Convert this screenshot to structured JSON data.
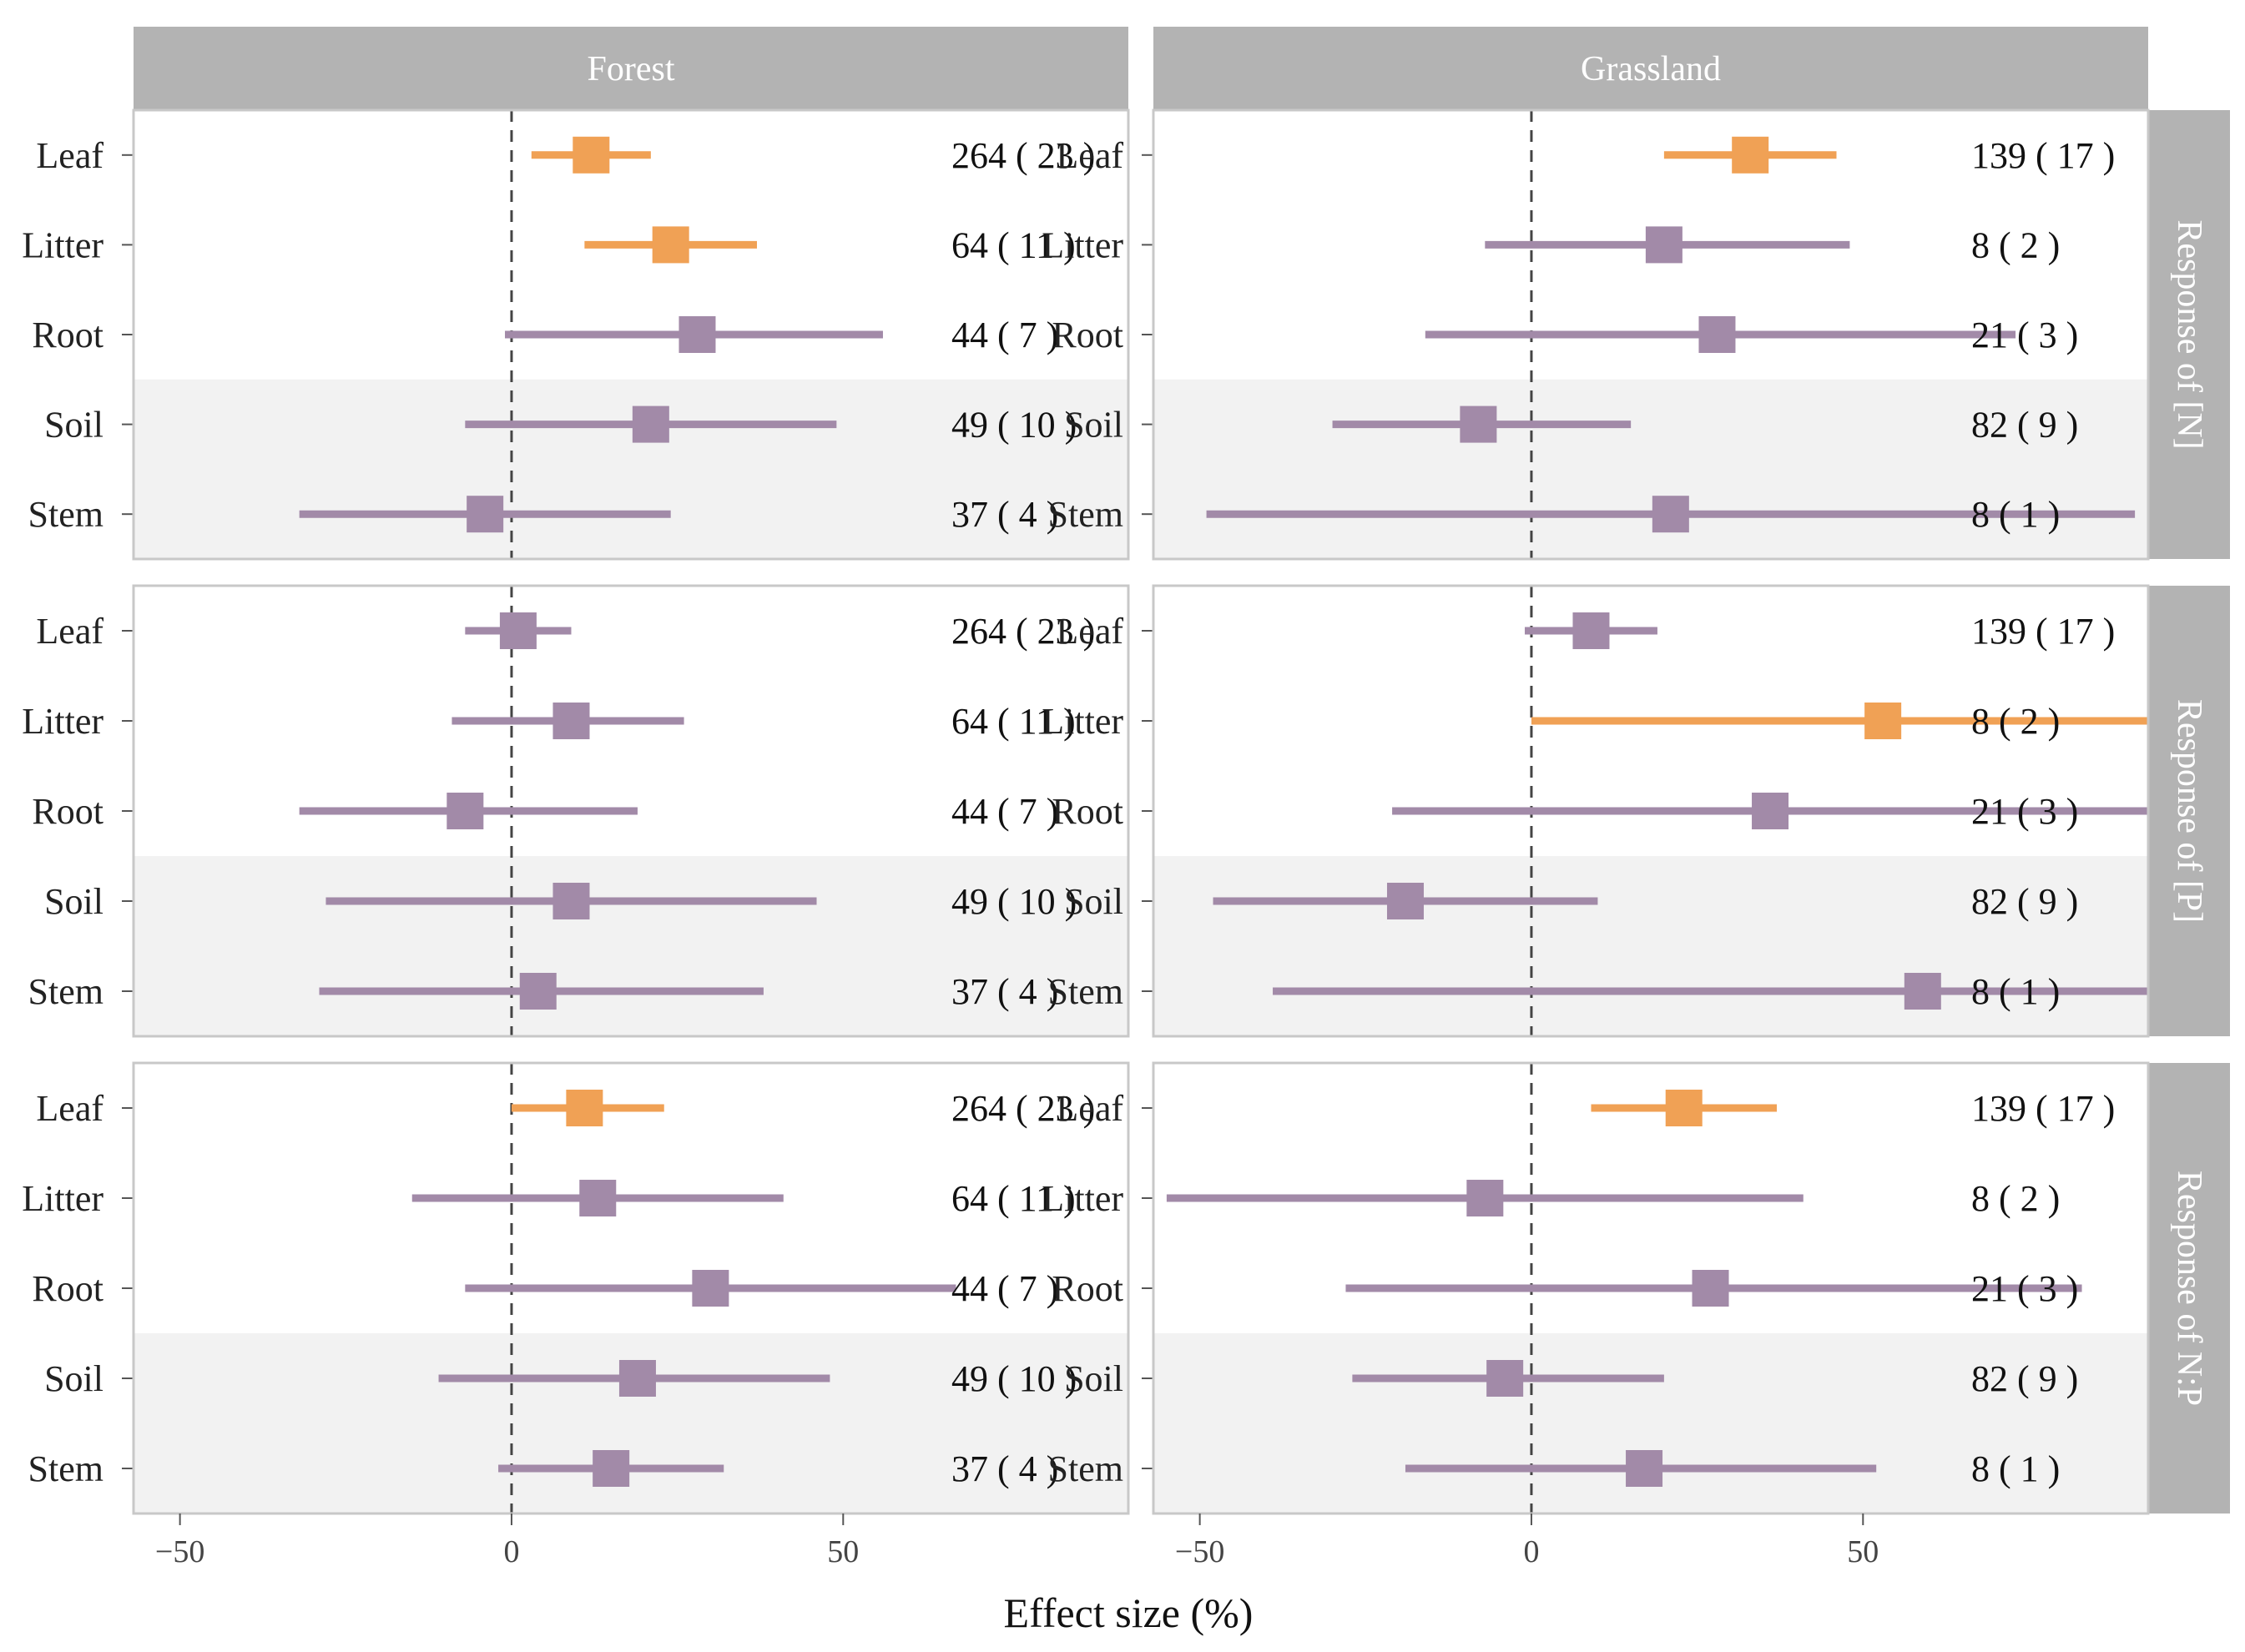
{
  "chart_data": {
    "type": "forest",
    "xlabel": "Effect size (%)",
    "xlim": [
      -57,
      93
    ],
    "xticks": [
      -50,
      0,
      50
    ],
    "reference_line": 0,
    "columns": [
      "Forest",
      "Grassland"
    ],
    "rows": [
      "Response of [N]",
      "Response of [P]",
      "Response of N:P"
    ],
    "categories": [
      "Leaf",
      "Litter",
      "Root",
      "Soil",
      "Stem"
    ],
    "shaded_categories": [
      "Soil",
      "Stem"
    ],
    "colors": {
      "significant": "#f0a155",
      "nonsignificant": "#a28aa8",
      "strip": "#b3b3b3",
      "shade": "#f2f2f2",
      "panel_border": "#c8c8c8"
    },
    "panels": [
      {
        "row": "Response of [N]",
        "column": "Forest",
        "points": [
          {
            "category": "Leaf",
            "estimate": 12,
            "ci_low": 3,
            "ci_high": 21,
            "n_label": "264 ( 23 )",
            "significant": true
          },
          {
            "category": "Litter",
            "estimate": 24,
            "ci_low": 11,
            "ci_high": 37,
            "n_label": "64 ( 11 )",
            "significant": true
          },
          {
            "category": "Root",
            "estimate": 28,
            "ci_low": -1,
            "ci_high": 56,
            "n_label": "44 ( 7 )",
            "significant": false
          },
          {
            "category": "Soil",
            "estimate": 21,
            "ci_low": -7,
            "ci_high": 49,
            "n_label": "49 ( 10 )",
            "significant": false
          },
          {
            "category": "Stem",
            "estimate": -4,
            "ci_low": -32,
            "ci_high": 24,
            "n_label": "37 ( 4 )",
            "significant": false
          }
        ]
      },
      {
        "row": "Response of [N]",
        "column": "Grassland",
        "points": [
          {
            "category": "Leaf",
            "estimate": 33,
            "ci_low": 20,
            "ci_high": 46,
            "n_label": "139 ( 17 )",
            "significant": true
          },
          {
            "category": "Litter",
            "estimate": 20,
            "ci_low": -7,
            "ci_high": 48,
            "n_label": "8 ( 2 )",
            "significant": false
          },
          {
            "category": "Root",
            "estimate": 28,
            "ci_low": -16,
            "ci_high": 73,
            "n_label": "21 ( 3 )",
            "significant": false
          },
          {
            "category": "Soil",
            "estimate": -8,
            "ci_low": -30,
            "ci_high": 15,
            "n_label": "82 ( 9 )",
            "significant": false
          },
          {
            "category": "Stem",
            "estimate": 21,
            "ci_low": -49,
            "ci_high": 91,
            "n_label": "8 ( 1 )",
            "significant": false
          }
        ]
      },
      {
        "row": "Response of [P]",
        "column": "Forest",
        "points": [
          {
            "category": "Leaf",
            "estimate": 1,
            "ci_low": -7,
            "ci_high": 9,
            "n_label": "264 ( 23 )",
            "significant": false
          },
          {
            "category": "Litter",
            "estimate": 9,
            "ci_low": -9,
            "ci_high": 26,
            "n_label": "64 ( 11 )",
            "significant": false
          },
          {
            "category": "Root",
            "estimate": -7,
            "ci_low": -32,
            "ci_high": 19,
            "n_label": "44 ( 7 )",
            "significant": false
          },
          {
            "category": "Soil",
            "estimate": 9,
            "ci_low": -28,
            "ci_high": 46,
            "n_label": "49 ( 10 )",
            "significant": false
          },
          {
            "category": "Stem",
            "estimate": 4,
            "ci_low": -29,
            "ci_high": 38,
            "n_label": "37 ( 4 )",
            "significant": false
          }
        ]
      },
      {
        "row": "Response of [P]",
        "column": "Grassland",
        "points": [
          {
            "category": "Leaf",
            "estimate": 9,
            "ci_low": -1,
            "ci_high": 19,
            "n_label": "139 ( 17 )",
            "significant": false
          },
          {
            "category": "Litter",
            "estimate": 53,
            "ci_low": 0,
            "ci_high": 98,
            "n_label": "8 ( 2 )",
            "significant": true
          },
          {
            "category": "Root",
            "estimate": 36,
            "ci_low": -21,
            "ci_high": 94,
            "n_label": "21 ( 3 )",
            "significant": false
          },
          {
            "category": "Soil",
            "estimate": -19,
            "ci_low": -48,
            "ci_high": 10,
            "n_label": "82 ( 9 )",
            "significant": false
          },
          {
            "category": "Stem",
            "estimate": 59,
            "ci_low": -39,
            "ci_high": 98,
            "n_label": "8 ( 1 )",
            "significant": false
          }
        ]
      },
      {
        "row": "Response of N:P",
        "column": "Forest",
        "points": [
          {
            "category": "Leaf",
            "estimate": 11,
            "ci_low": 0,
            "ci_high": 23,
            "n_label": "264 ( 23 )",
            "significant": true
          },
          {
            "category": "Litter",
            "estimate": 13,
            "ci_low": -15,
            "ci_high": 41,
            "n_label": "64 ( 11 )",
            "significant": false
          },
          {
            "category": "Root",
            "estimate": 30,
            "ci_low": -7,
            "ci_high": 67,
            "n_label": "44 ( 7 )",
            "significant": false
          },
          {
            "category": "Soil",
            "estimate": 19,
            "ci_low": -11,
            "ci_high": 48,
            "n_label": "49 ( 10 )",
            "significant": false
          },
          {
            "category": "Stem",
            "estimate": 15,
            "ci_low": -2,
            "ci_high": 32,
            "n_label": "37 ( 4 )",
            "significant": false
          }
        ]
      },
      {
        "row": "Response of N:P",
        "column": "Grassland",
        "points": [
          {
            "category": "Leaf",
            "estimate": 23,
            "ci_low": 9,
            "ci_high": 37,
            "n_label": "139 ( 17 )",
            "significant": true
          },
          {
            "category": "Litter",
            "estimate": -7,
            "ci_low": -55,
            "ci_high": 41,
            "n_label": "8 ( 2 )",
            "significant": false
          },
          {
            "category": "Root",
            "estimate": 27,
            "ci_low": -28,
            "ci_high": 83,
            "n_label": "21 ( 3 )",
            "significant": false
          },
          {
            "category": "Soil",
            "estimate": -4,
            "ci_low": -27,
            "ci_high": 20,
            "n_label": "82 ( 9 )",
            "significant": false
          },
          {
            "category": "Stem",
            "estimate": 17,
            "ci_low": -19,
            "ci_high": 52,
            "n_label": "8 ( 1 )",
            "significant": false
          }
        ]
      }
    ]
  }
}
